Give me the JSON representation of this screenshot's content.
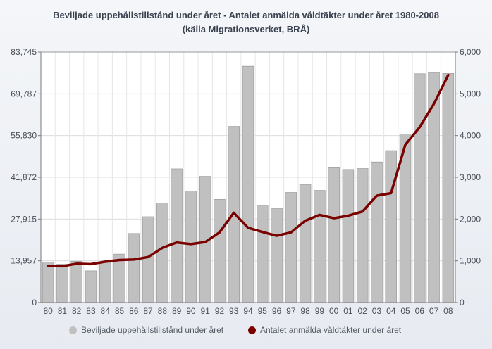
{
  "chart_data": {
    "type": "bar",
    "title": "Beviljade uppehållstillstånd under året - Antalet anmälda våldtäkter under året 1980-2008",
    "subtitle": "(källa Migrationsverket, BRÅ)",
    "categories": [
      "80",
      "81",
      "82",
      "83",
      "84",
      "85",
      "86",
      "87",
      "88",
      "89",
      "90",
      "91",
      "92",
      "93",
      "94",
      "95",
      "96",
      "97",
      "98",
      "99",
      "00",
      "01",
      "02",
      "03",
      "04",
      "05",
      "06",
      "07",
      "08"
    ],
    "left_axis": {
      "ylim": [
        0,
        83745
      ],
      "ticks": [
        "0",
        "13,957",
        "27,915",
        "41,872",
        "55,830",
        "69,787",
        "83,745"
      ]
    },
    "right_axis": {
      "ylim": [
        0,
        6000
      ],
      "ticks": [
        "0",
        "1,000",
        "2,000",
        "3,000",
        "4,000",
        "5,000",
        "6,000"
      ]
    },
    "grid": true,
    "legend_position": "bottom",
    "series": [
      {
        "name": "Beviljade uppehållstillstånd under året",
        "type": "bar",
        "axis": "left",
        "color": "#c0c0c0",
        "values": [
          13500,
          12800,
          13800,
          10600,
          13300,
          16200,
          23100,
          28700,
          33300,
          44700,
          37300,
          42200,
          34500,
          58900,
          79000,
          32500,
          31500,
          36800,
          39500,
          37500,
          45100,
          44500,
          44800,
          47000,
          50800,
          56300,
          76500,
          76900,
          76600
        ]
      },
      {
        "name": "Antalet anmälda våldtäkter under året",
        "type": "line",
        "axis": "right",
        "color": "#7a0000",
        "values": [
          880,
          870,
          930,
          920,
          980,
          1020,
          1030,
          1090,
          1310,
          1440,
          1400,
          1450,
          1680,
          2150,
          1790,
          1690,
          1600,
          1680,
          1960,
          2100,
          2020,
          2080,
          2180,
          2560,
          2620,
          3780,
          4200,
          4760,
          5450
        ]
      }
    ]
  }
}
